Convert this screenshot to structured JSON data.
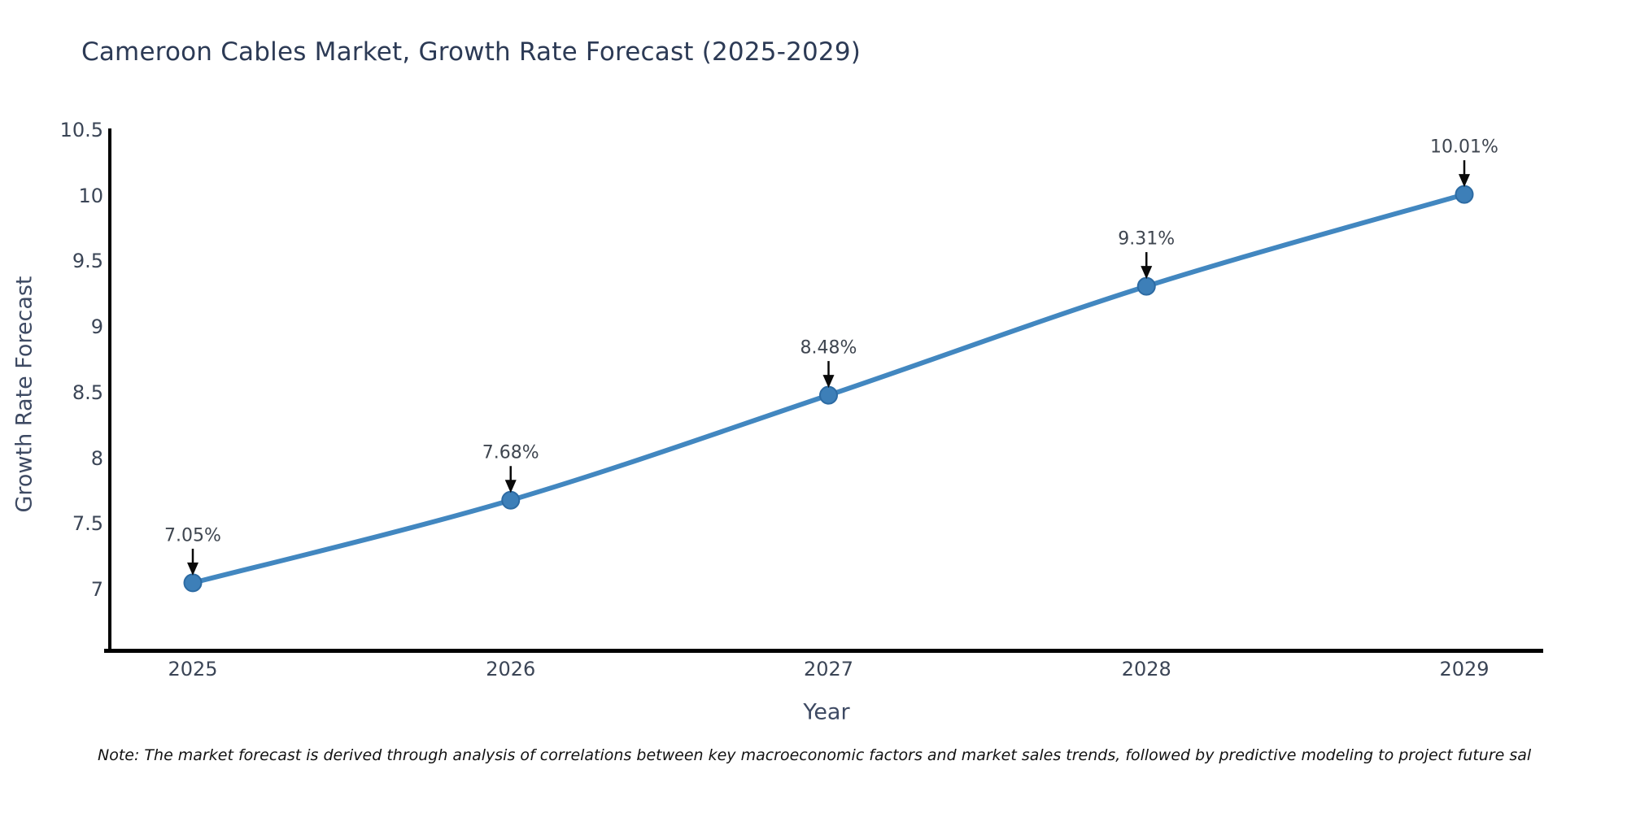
{
  "note": "Note: The market forecast is derived through analysis of correlations between key macroeconomic factors and market sales trends, followed by predictive modeling to project future sal",
  "chart_data": {
    "type": "line",
    "title": "Cameroon Cables Market, Growth Rate Forecast (2025-2029)",
    "xlabel": "Year",
    "ylabel": "Growth Rate Forecast",
    "x": [
      2025,
      2026,
      2027,
      2028,
      2029
    ],
    "series": [
      {
        "name": "Growth Rate Forecast",
        "values": [
          7.05,
          7.68,
          8.48,
          9.31,
          10.01
        ]
      }
    ],
    "point_labels": [
      "7.05%",
      "7.68%",
      "8.48%",
      "9.31%",
      "10.01%"
    ],
    "yticks": [
      7,
      7.5,
      8,
      8.5,
      9,
      9.5,
      10,
      10.5
    ],
    "ylim": [
      6.55,
      10.5
    ],
    "grid": false,
    "legend": false,
    "annotations_have_arrows": true,
    "colors": {
      "line": "#4287c0",
      "marker": "#3d7fb8",
      "marker_edge": "#2d6ba3",
      "axis": "#000000",
      "arrow": "#0a0a0a"
    }
  }
}
